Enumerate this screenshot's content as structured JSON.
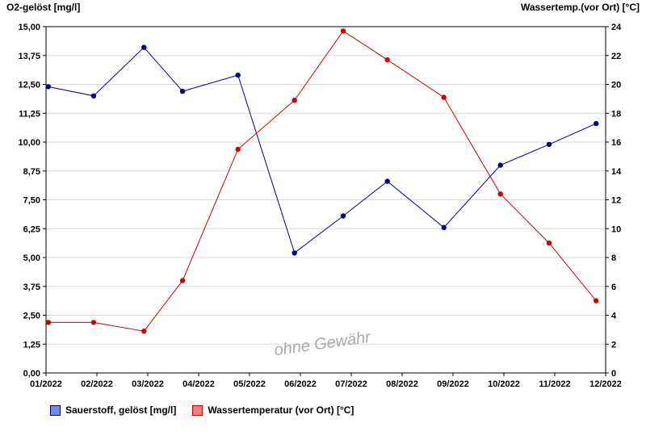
{
  "header": {
    "left_axis_title": "O2-gelöst [mg/l]",
    "right_axis_title": "Wassertemp.(vor Ort) [°C]"
  },
  "watermark": "ohne Gewähr",
  "legend": {
    "items": [
      {
        "label": "Sauerstoff, gelöst [mg/l]",
        "fill": "#6e8fe0",
        "border": "#00007f"
      },
      {
        "label": "Wassertemperatur (vor Ort) [°C]",
        "fill": "#f08080",
        "border": "#d00000"
      }
    ]
  },
  "chart_data": {
    "type": "line",
    "title": "",
    "grid": "horizontal",
    "grid_color": "#d8d8d8",
    "legend_position": "bottom-left",
    "x_tick_labels": [
      "01/2022",
      "02/2022",
      "03/2022",
      "04/2022",
      "05/2022",
      "06/2022",
      "07/2022",
      "08/2022",
      "09/2022",
      "10/2022",
      "11/2022",
      "12/2022"
    ],
    "left_axis": {
      "label": "O2-gelöst [mg/l]",
      "min": 0,
      "max": 15,
      "tick_labels": [
        "0,00",
        "1,25",
        "2,50",
        "3,75",
        "5,00",
        "6,25",
        "7,50",
        "8,75",
        "10,00",
        "11,25",
        "12,50",
        "13,75",
        "15,00"
      ]
    },
    "right_axis": {
      "label": "Wassertemp.(vor Ort) [°C]",
      "min": 0,
      "max": 24,
      "tick_labels": [
        "0",
        "2",
        "4",
        "6",
        "8",
        "10",
        "12",
        "14",
        "16",
        "18",
        "20",
        "22",
        "24"
      ]
    },
    "series": [
      {
        "name": "Sauerstoff, gelöst [mg/l]",
        "axis": "left",
        "color": "#00007f",
        "points": [
          {
            "x": 0.004,
            "y": 12.4
          },
          {
            "x": 0.085,
            "y": 12.0
          },
          {
            "x": 0.175,
            "y": 14.1
          },
          {
            "x": 0.244,
            "y": 12.2
          },
          {
            "x": 0.343,
            "y": 12.9
          },
          {
            "x": 0.444,
            "y": 5.2
          },
          {
            "x": 0.531,
            "y": 6.8
          },
          {
            "x": 0.61,
            "y": 8.3
          },
          {
            "x": 0.711,
            "y": 6.3
          },
          {
            "x": 0.812,
            "y": 9.0
          },
          {
            "x": 0.899,
            "y": 9.9
          },
          {
            "x": 0.983,
            "y": 10.8
          }
        ]
      },
      {
        "name": "Wassertemperatur (vor Ort) [°C]",
        "axis": "right",
        "color": "#d00000",
        "points": [
          {
            "x": 0.004,
            "y": 3.5
          },
          {
            "x": 0.085,
            "y": 3.5
          },
          {
            "x": 0.175,
            "y": 2.9
          },
          {
            "x": 0.244,
            "y": 6.4
          },
          {
            "x": 0.343,
            "y": 15.5
          },
          {
            "x": 0.444,
            "y": 18.9
          },
          {
            "x": 0.531,
            "y": 23.7
          },
          {
            "x": 0.61,
            "y": 21.7
          },
          {
            "x": 0.711,
            "y": 19.1
          },
          {
            "x": 0.812,
            "y": 12.4
          },
          {
            "x": 0.899,
            "y": 9.0
          },
          {
            "x": 0.983,
            "y": 5.0
          }
        ]
      }
    ]
  }
}
